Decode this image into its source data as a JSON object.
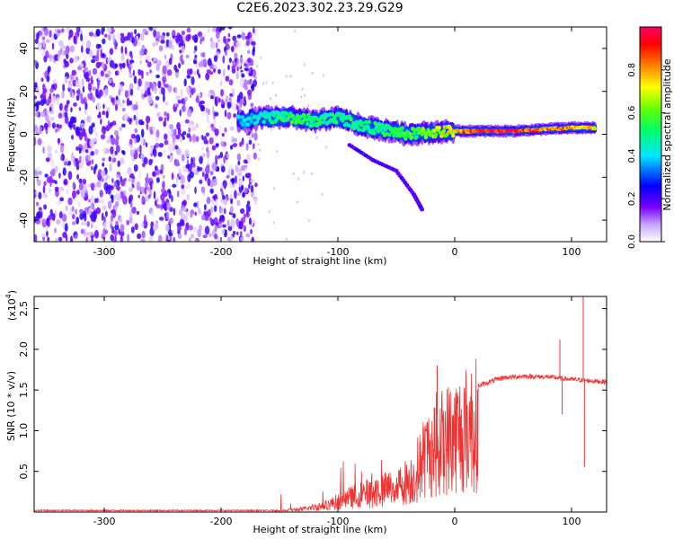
{
  "page_title": "C2E6.2023.302.23.29.G29",
  "chart_data": [
    {
      "type": "heatmap",
      "xlabel": "Height of straight line (km)",
      "ylabel": "Frequency (Hz)",
      "xlim": [
        -360,
        130
      ],
      "ylim": [
        -50,
        50
      ],
      "x_ticks": [
        -300,
        -200,
        -100,
        0,
        100
      ],
      "y_ticks": [
        -40,
        -20,
        0,
        20,
        40
      ],
      "colorbar": {
        "label": "Normalized spectral amplitude",
        "range": [
          0.0,
          1.0
        ],
        "ticks": [
          "0.0",
          "0.2",
          "0.4",
          "0.6",
          "0.8"
        ],
        "tick_values": [
          0.0,
          0.2,
          0.4,
          0.6,
          0.8
        ],
        "colors": [
          "#ffffff",
          "#b36bff",
          "#7a00ff",
          "#0000ff",
          "#00e6ff",
          "#00ff00",
          "#ffff00",
          "#ff8000",
          "#ff0000",
          "#ff0066"
        ]
      },
      "signal_ridge": [
        {
          "x": -185,
          "y": 6,
          "amp": 0.35
        },
        {
          "x": -160,
          "y": 8,
          "amp": 0.45
        },
        {
          "x": -140,
          "y": 8,
          "amp": 0.55
        },
        {
          "x": -120,
          "y": 6,
          "amp": 0.5
        },
        {
          "x": -100,
          "y": 8,
          "amp": 0.5
        },
        {
          "x": -80,
          "y": 4,
          "amp": 0.5
        },
        {
          "x": -60,
          "y": 2,
          "amp": 0.5
        },
        {
          "x": -40,
          "y": 0,
          "amp": 0.55
        },
        {
          "x": -20,
          "y": 1,
          "amp": 0.6
        },
        {
          "x": 0,
          "y": 1.5,
          "amp": 0.75
        },
        {
          "x": 20,
          "y": 1.5,
          "amp": 0.9
        },
        {
          "x": 50,
          "y": 1.5,
          "amp": 0.9
        },
        {
          "x": 80,
          "y": 2.5,
          "amp": 0.85
        },
        {
          "x": 100,
          "y": 3,
          "amp": 0.8
        },
        {
          "x": 120,
          "y": 3,
          "amp": 0.75
        }
      ],
      "side_branch": [
        {
          "x": -90,
          "y": -5
        },
        {
          "x": -70,
          "y": -12
        },
        {
          "x": -50,
          "y": -17
        },
        {
          "x": -35,
          "y": -28
        },
        {
          "x": -28,
          "y": -35
        }
      ],
      "noise_region": {
        "x_from": -360,
        "x_to": -170,
        "amp": 0.3
      }
    },
    {
      "type": "line",
      "xlabel": "Height of straight line (km)",
      "ylabel": "SNR (10 * v/v)",
      "y_multiplier_label": "(x10",
      "y_multiplier_exp": "4",
      "y_multiplier_close": ")",
      "xlim": [
        -360,
        130
      ],
      "ylim": [
        0,
        2.65
      ],
      "x_ticks": [
        -300,
        -200,
        -100,
        0,
        100
      ],
      "y_ticks": [
        0.5,
        1.0,
        1.5,
        2.0,
        2.5
      ],
      "y_tick_labels": [
        "0.5",
        "1.0",
        "1.5",
        "2.0",
        "2.5"
      ],
      "series_color": "#ee3333",
      "envelope": [
        {
          "x": -360,
          "y": 0.02
        },
        {
          "x": -150,
          "y": 0.02
        },
        {
          "x": -130,
          "y": 0.05
        },
        {
          "x": -110,
          "y": 0.12
        },
        {
          "x": -90,
          "y": 0.25
        },
        {
          "x": -70,
          "y": 0.35
        },
        {
          "x": -50,
          "y": 0.45
        },
        {
          "x": -35,
          "y": 0.6
        },
        {
          "x": -25,
          "y": 1.0
        },
        {
          "x": -15,
          "y": 1.2
        },
        {
          "x": 0,
          "y": 1.35
        },
        {
          "x": 20,
          "y": 1.55
        },
        {
          "x": 40,
          "y": 1.65
        },
        {
          "x": 60,
          "y": 1.67
        },
        {
          "x": 80,
          "y": 1.66
        },
        {
          "x": 100,
          "y": 1.63
        },
        {
          "x": 130,
          "y": 1.6
        }
      ],
      "spikes": [
        {
          "x": -15,
          "y": 1.8
        },
        {
          "x": 90,
          "y": 2.12
        },
        {
          "x": 92,
          "y": 1.2
        },
        {
          "x": 110,
          "y": 2.65
        },
        {
          "x": 111,
          "y": 0.55
        }
      ]
    }
  ]
}
